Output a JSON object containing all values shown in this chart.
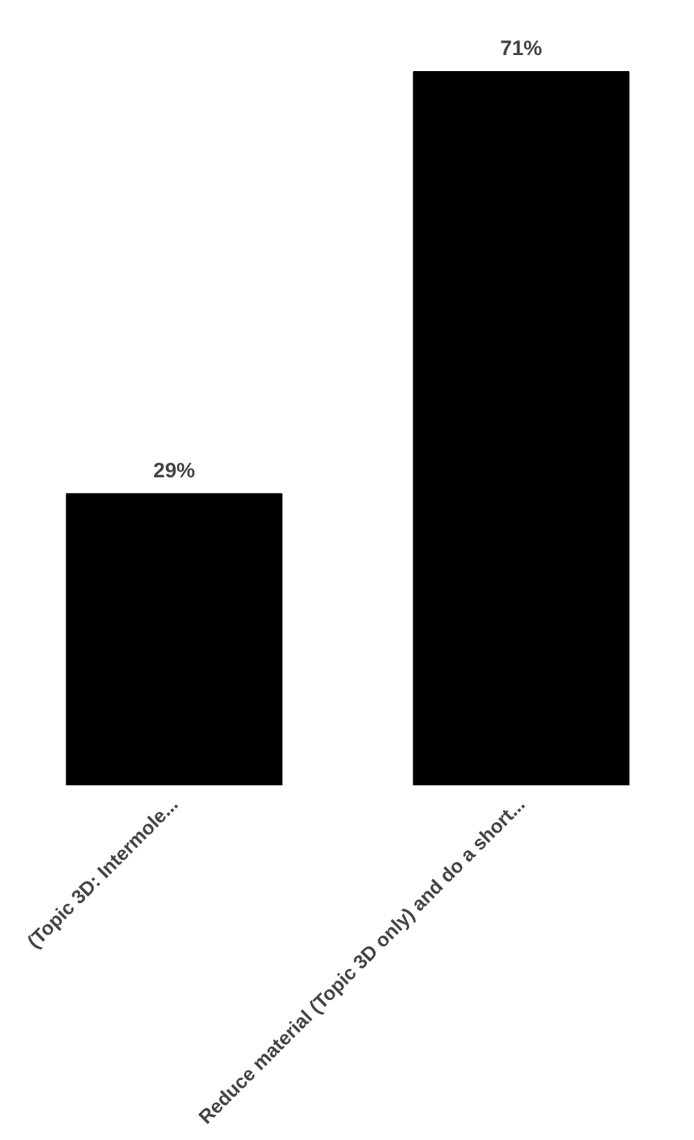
{
  "chart_data": {
    "type": "bar",
    "categories": [
      "(Topic 3D: Intermole...",
      "Reduce material (Topic 3D only) and do a short..."
    ],
    "values": [
      29,
      71
    ],
    "color": "#000000",
    "value_labels": [
      "29%",
      "71%"
    ]
  }
}
